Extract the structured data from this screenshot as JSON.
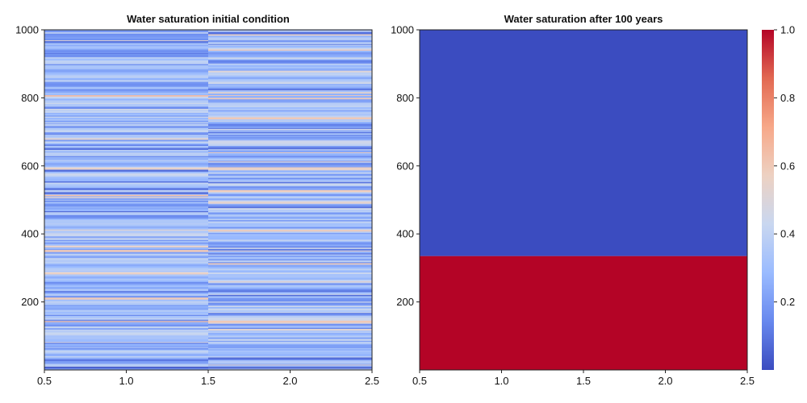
{
  "chart_data": [
    {
      "type": "heatmap",
      "title": "Water saturation initial condition",
      "xlabel": "",
      "ylabel": "",
      "xlim": [
        0.5,
        2.5
      ],
      "ylim": [
        0,
        1000
      ],
      "x_ticks": [
        "0.5",
        "1.0",
        "1.5",
        "2.0",
        "2.5"
      ],
      "y_ticks": [
        "200",
        "400",
        "600",
        "800",
        "1000"
      ],
      "columns": [
        {
          "x_range": [
            0.5,
            1.5
          ],
          "value_range": [
            0.05,
            0.7
          ]
        },
        {
          "x_range": [
            1.5,
            2.5
          ],
          "value_range": [
            0.05,
            0.6
          ]
        }
      ],
      "description_values": {
        "dominant_range": [
          0.15,
          0.45
        ],
        "notable_high_bands": [
          {
            "y": 805,
            "value": 0.65
          },
          {
            "y": 348,
            "value": 0.6
          },
          {
            "y": 140,
            "value": 0.65
          },
          {
            "y": 590,
            "value": 0.55
          }
        ],
        "notable_low_bands": [
          {
            "y": 5,
            "value": 0.05
          },
          {
            "y": 550,
            "value": 0.1
          },
          {
            "y": 650,
            "value": 0.1
          },
          {
            "y": 230,
            "value": 0.1
          }
        ]
      },
      "colormap": "coolwarm",
      "grid": false
    },
    {
      "type": "heatmap",
      "title": "Water saturation after 100 years",
      "xlabel": "",
      "ylabel": "",
      "xlim": [
        0.5,
        2.5
      ],
      "ylim": [
        0,
        1000
      ],
      "x_ticks": [
        "0.5",
        "1.0",
        "1.5",
        "2.0",
        "2.5"
      ],
      "y_ticks": [
        "200",
        "400",
        "600",
        "800",
        "1000"
      ],
      "regions": [
        {
          "y_range": [
            0,
            335
          ],
          "value": 1.0
        },
        {
          "y_range": [
            335,
            1000
          ],
          "value": 0.0
        }
      ],
      "colormap": "coolwarm",
      "grid": false
    }
  ],
  "colorbar": {
    "range": [
      0.0,
      1.0
    ],
    "ticks": [
      "0.2",
      "0.4",
      "0.6",
      "0.8",
      "1.0"
    ],
    "colormap": "coolwarm",
    "colors": [
      "#3b4cc0",
      "#6788ee",
      "#9abbff",
      "#c9d7f0",
      "#edd1c2",
      "#f7a889",
      "#e26952",
      "#b40426"
    ]
  }
}
